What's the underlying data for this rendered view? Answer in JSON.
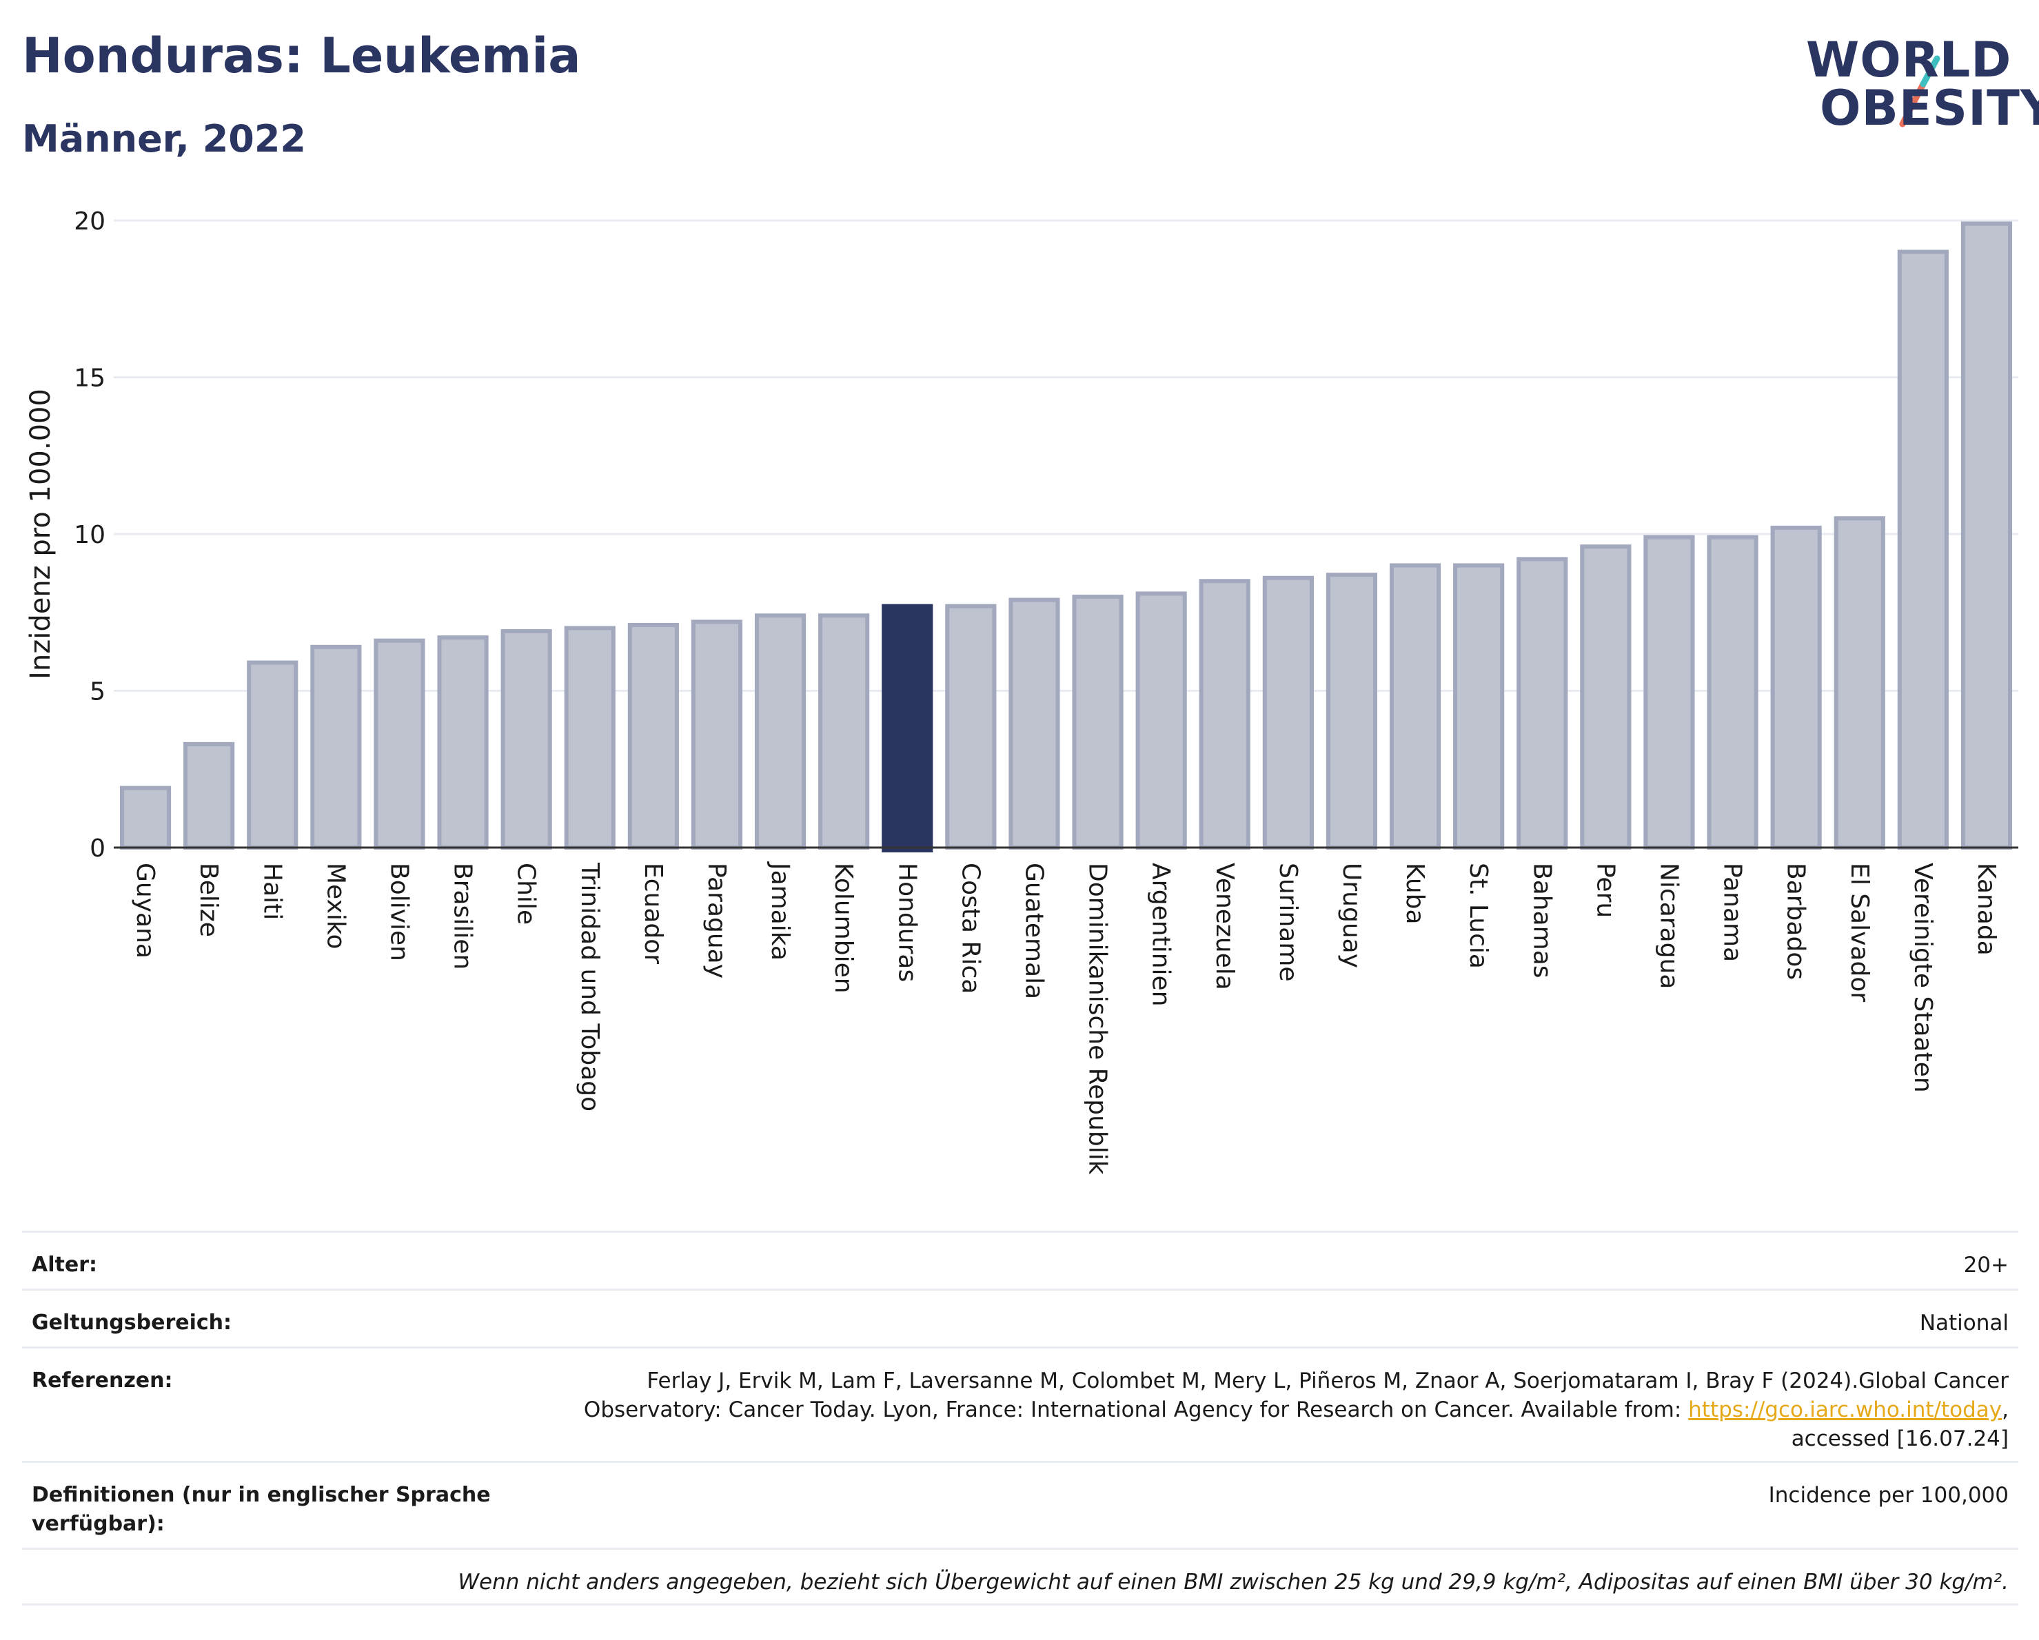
{
  "header": {
    "title": "Honduras: Leukemia",
    "subtitle": "Männer, 2022"
  },
  "logo": {
    "line1": "WORLD",
    "line2": "OBESITY",
    "accent_colors": [
      "#3fbfbf",
      "#e8705a"
    ]
  },
  "colors": {
    "highlight": "#2b3561",
    "bar_fill": "#bfc3cf",
    "bar_stroke": "#a2a8bd",
    "grid": "#e8ebf2",
    "link": "#e6a817"
  },
  "chart_data": {
    "type": "bar",
    "ylabel": "Inzidenz pro 100.000",
    "ylim": [
      0,
      20
    ],
    "yticks": [
      0,
      5,
      10,
      15,
      20
    ],
    "grid": true,
    "highlight": "Honduras",
    "categories": [
      "Guyana",
      "Belize",
      "Haiti",
      "Mexiko",
      "Bolivien",
      "Brasilien",
      "Chile",
      "Trinidad und Tobago",
      "Ecuador",
      "Paraguay",
      "Jamaika",
      "Kolumbien",
      "Honduras",
      "Costa Rica",
      "Guatemala",
      "Dominikanische Republik",
      "Argentinien",
      "Venezuela",
      "Suriname",
      "Uruguay",
      "Kuba",
      "St. Lucia",
      "Bahamas",
      "Peru",
      "Nicaragua",
      "Panama",
      "Barbados",
      "El Salvador",
      "Vereinigte Staaten",
      "Kanada"
    ],
    "values": [
      1.9,
      3.3,
      5.9,
      6.4,
      6.6,
      6.7,
      6.9,
      7.0,
      7.1,
      7.2,
      7.4,
      7.4,
      7.7,
      7.7,
      7.9,
      8.0,
      8.1,
      8.5,
      8.6,
      8.7,
      9.0,
      9.0,
      9.2,
      9.6,
      9.9,
      9.9,
      10.2,
      10.5,
      19.0,
      19.9
    ]
  },
  "meta": {
    "age_label": "Alter:",
    "age_value": "20+",
    "scope_label": "Geltungsbereich:",
    "scope_value": "National",
    "ref_label": "Referenzen:",
    "ref_text_1": "Ferlay J, Ervik M, Lam F, Laversanne M, Colombet M, Mery L, Piñeros M, Znaor A, Soerjomataram I, Bray F (2024).Global Cancer Observatory: Cancer Today. Lyon, France: International Agency for Research on Cancer. Available from: ",
    "ref_link": "https://gco.iarc.who.int/today",
    "ref_text_2": ", accessed [16.07.24]",
    "def_label": "Definitionen (nur in englischer Sprache verfügbar):",
    "def_value": "Incidence per 100,000",
    "note": "Wenn nicht anders angegeben, bezieht sich Übergewicht auf einen BMI zwischen 25 kg und 29,9 kg/m², Adipositas auf einen BMI über 30 kg/m²."
  }
}
